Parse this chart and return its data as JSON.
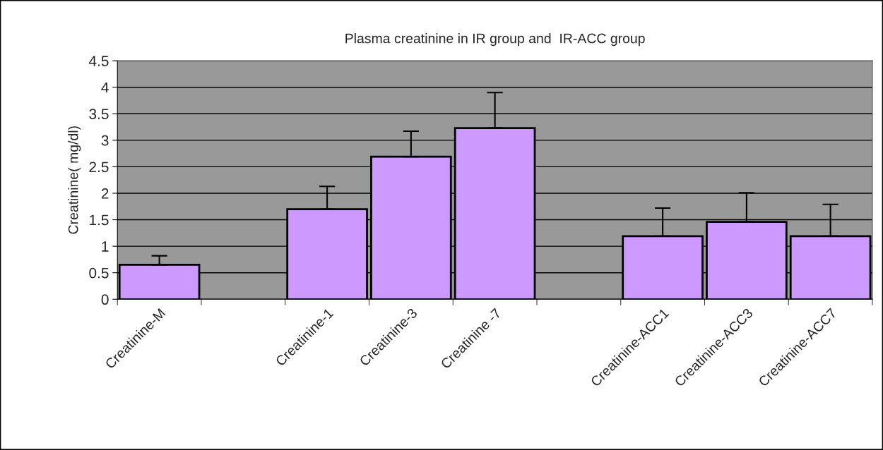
{
  "chart_data": {
    "type": "bar",
    "title": "Plasma creatinine in IR group and  IR-ACC group",
    "ylabel": "Creatinine( mg/dl)",
    "categories": [
      "Creatinine-M",
      null,
      "Creatinine-1",
      "Creatinine-3",
      "Creatinine -7",
      null,
      "Creatinine-ACC1",
      "Creatinine-ACC3",
      "Creatinine-ACC7"
    ],
    "values": [
      0.65,
      null,
      1.7,
      2.69,
      3.23,
      null,
      1.19,
      1.46,
      1.19
    ],
    "errors": [
      [
        0.65,
        0.82
      ],
      null,
      [
        1.7,
        2.13
      ],
      [
        2.69,
        3.17
      ],
      [
        3.23,
        3.9
      ],
      null,
      [
        1.19,
        1.72
      ],
      [
        1.46,
        2.01
      ],
      [
        1.19,
        1.79
      ]
    ],
    "color": "#cc99ff",
    "ylim": [
      0,
      4.5
    ],
    "yticks": [
      0,
      0.5,
      1,
      1.5,
      2,
      2.5,
      3,
      3.5,
      4,
      4.5
    ],
    "grid": "y",
    "legend": false
  }
}
